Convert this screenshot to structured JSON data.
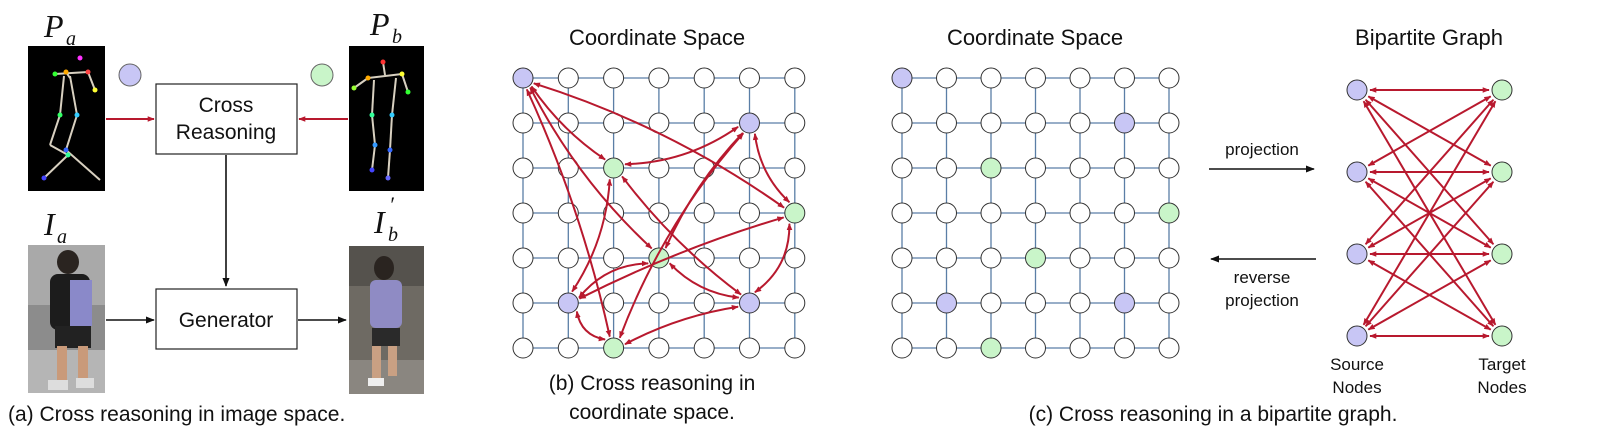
{
  "panel_a": {
    "pose_a_letter": "P",
    "pose_a_sub": "a",
    "pose_b_letter": "P",
    "pose_b_sub": "b",
    "image_a_letter": "I",
    "image_a_sub": "a",
    "image_b_letter": "I",
    "image_b_sub": "b",
    "image_b_prime": "′",
    "cross_reasoning_line1": "Cross",
    "cross_reasoning_line2": "Reasoning",
    "generator": "Generator",
    "caption": "(a) Cross reasoning in image space."
  },
  "panel_b": {
    "title": "Coordinate Space",
    "caption_line1": "(b) Cross reasoning in",
    "caption_line2": "coordinate space."
  },
  "panel_c": {
    "grid_title": "Coordinate Space",
    "graph_title": "Bipartite Graph",
    "projection": "projection",
    "reverse_line1": "reverse",
    "reverse_line2": "projection",
    "source_line1": "Source",
    "source_line2": "Nodes",
    "target_line1": "Target",
    "target_line2": "Nodes",
    "caption": "(c) Cross reasoning in a bipartite graph."
  },
  "colors": {
    "source_node": "#c8c6f5",
    "target_node": "#c9f5c9",
    "empty_node": "#ffffff",
    "grid_line": "#5a7ea6",
    "arrow": "#b8192e"
  }
}
